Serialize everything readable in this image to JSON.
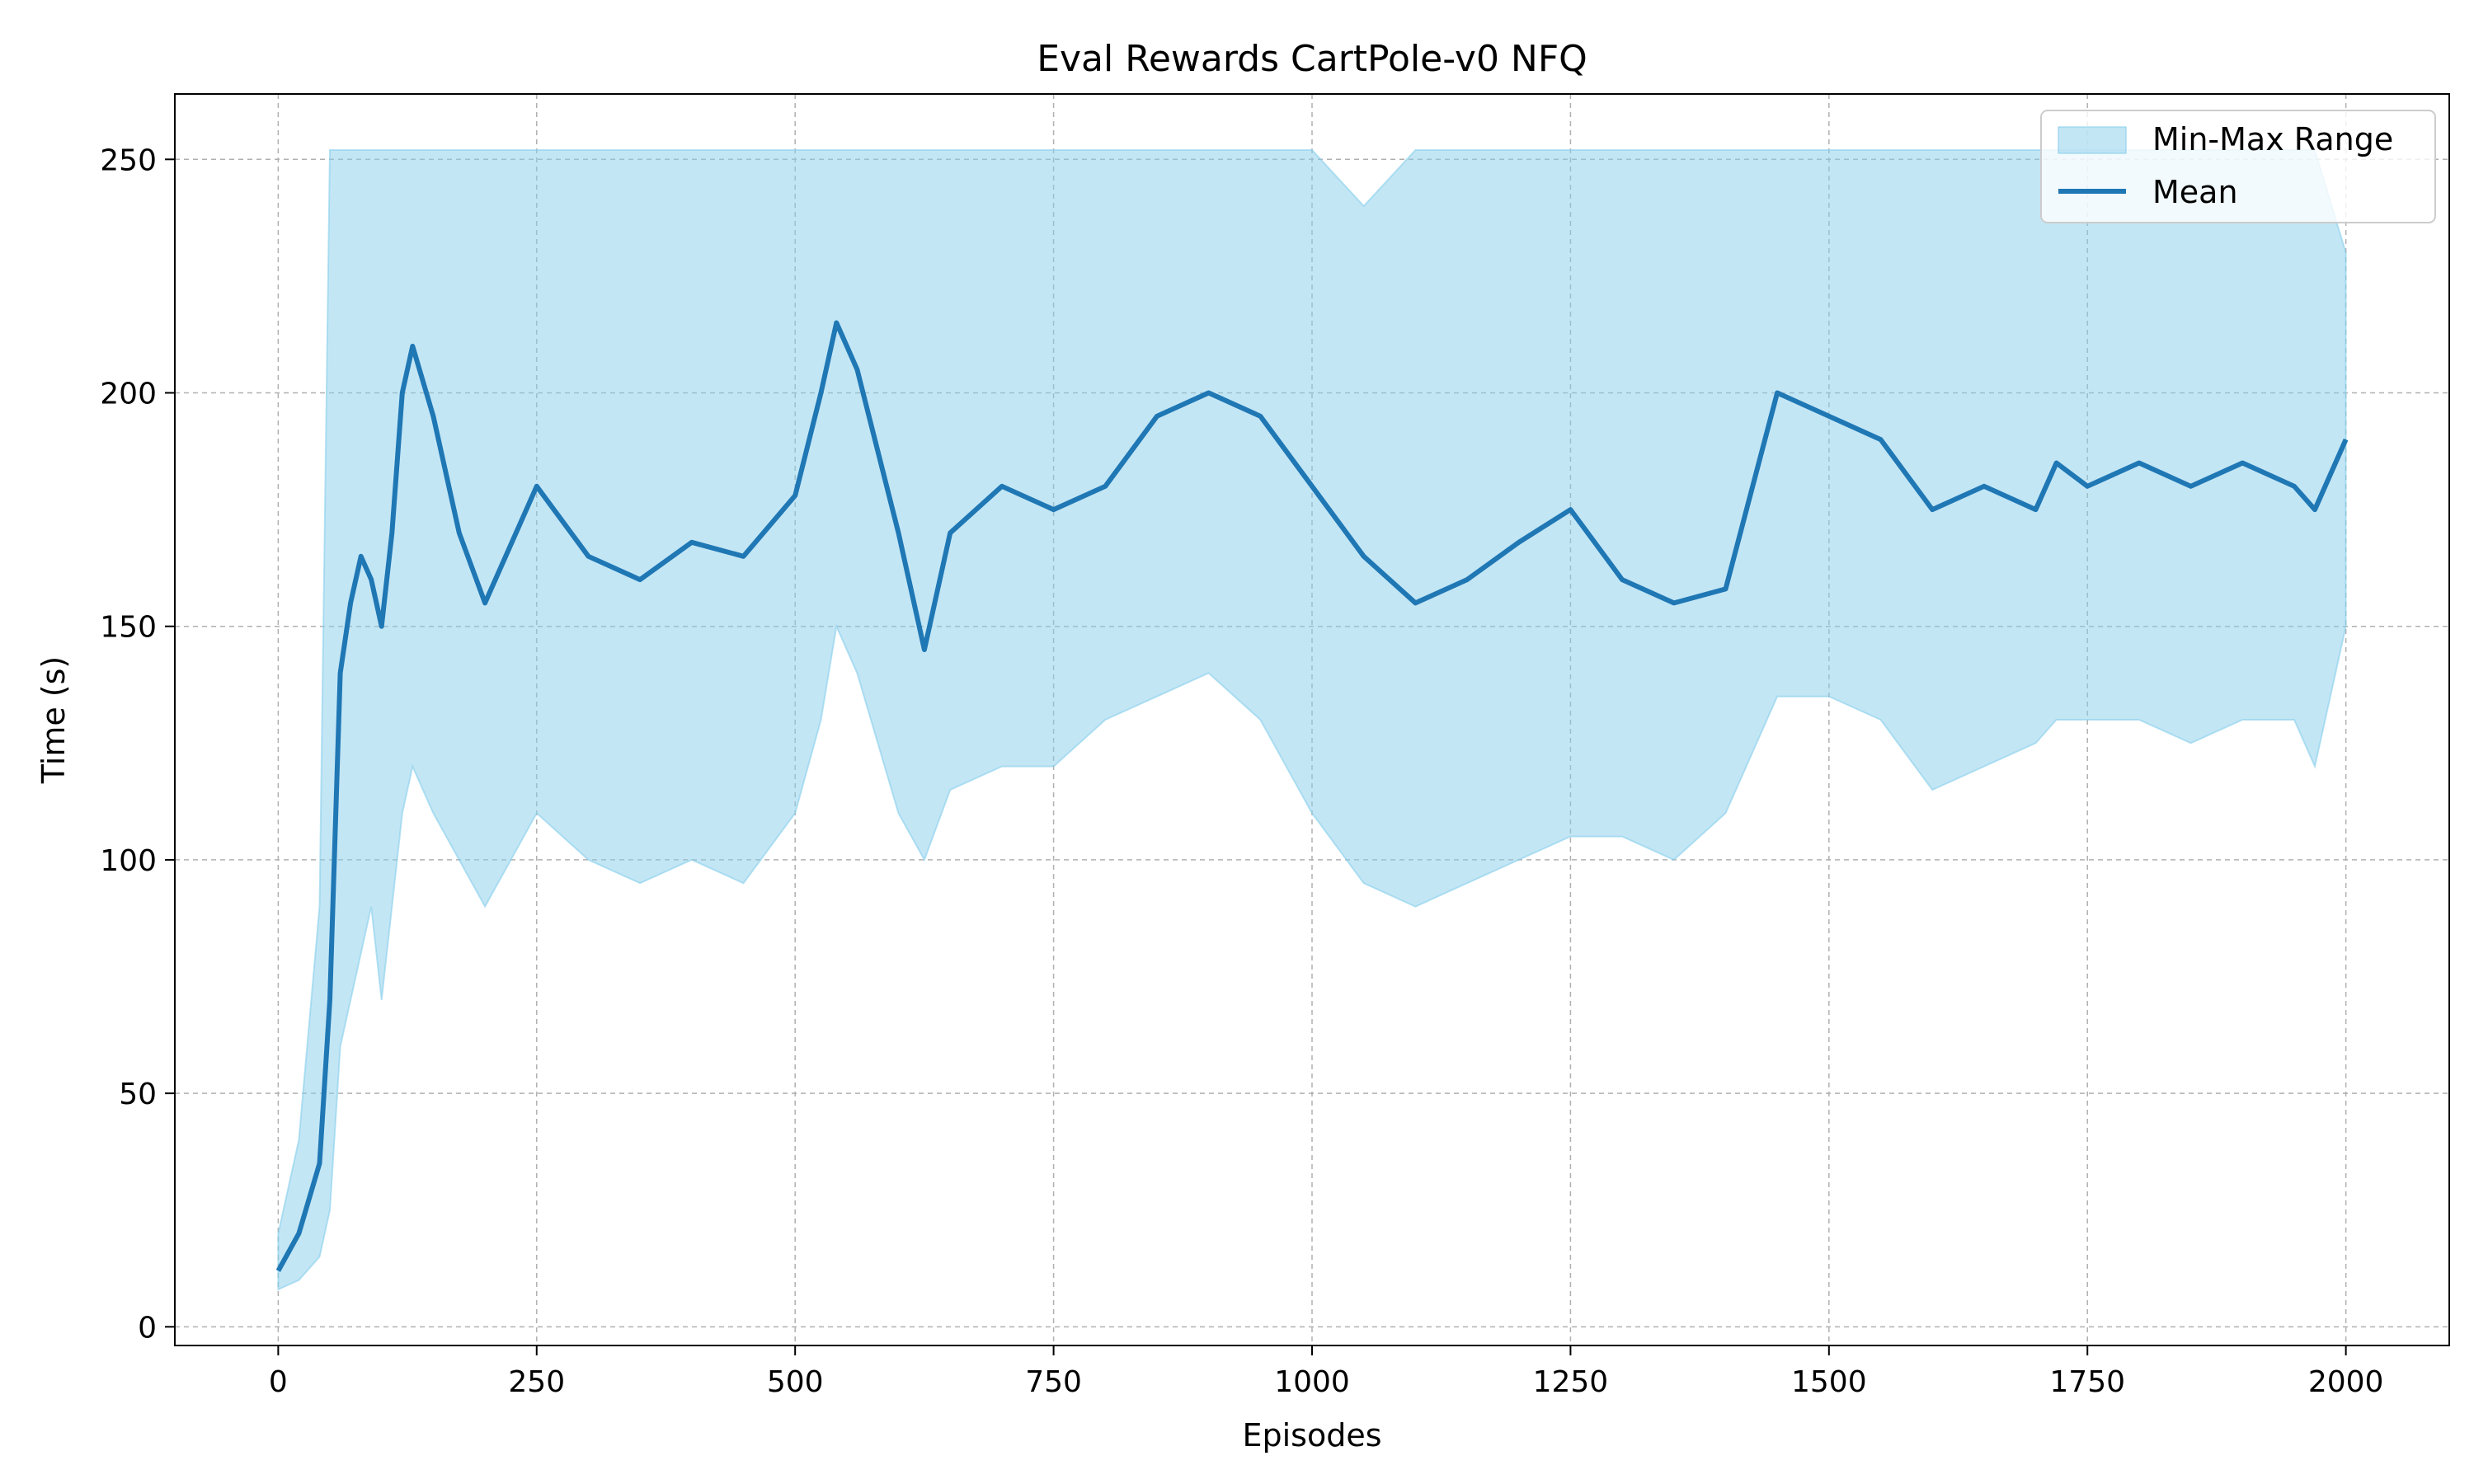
{
  "chart_data": {
    "type": "line",
    "title": "Eval Rewards CartPole-v0 NFQ",
    "xlabel": "Episodes",
    "ylabel": "Time (s)",
    "xlim": [
      -100,
      2100
    ],
    "ylim": [
      -4,
      264
    ],
    "x_ticks": [
      0,
      250,
      500,
      750,
      1000,
      1250,
      1500,
      1750,
      2000
    ],
    "y_ticks": [
      0,
      50,
      100,
      150,
      200,
      250
    ],
    "grid": true,
    "legend_position": "top-right",
    "legend": [
      {
        "label": "Min-Max Range",
        "kind": "band",
        "color": "#87ceeb"
      },
      {
        "label": "Mean",
        "kind": "line",
        "color": "#1f77b4"
      }
    ],
    "colors": {
      "mean": "#1f77b4",
      "band": "#87ceeb",
      "grid": "#b0b0b0"
    },
    "series": [
      {
        "name": "Mean",
        "x": [
          0,
          20,
          40,
          50,
          60,
          70,
          80,
          90,
          100,
          110,
          120,
          130,
          150,
          175,
          200,
          250,
          300,
          350,
          400,
          450,
          500,
          525,
          540,
          560,
          600,
          625,
          650,
          700,
          750,
          800,
          850,
          900,
          950,
          1000,
          1050,
          1100,
          1150,
          1200,
          1250,
          1300,
          1350,
          1400,
          1450,
          1500,
          1550,
          1600,
          1650,
          1700,
          1720,
          1750,
          1800,
          1850,
          1900,
          1950,
          1970,
          2000
        ],
        "y": [
          12,
          20,
          35,
          70,
          140,
          155,
          165,
          160,
          150,
          170,
          200,
          210,
          195,
          170,
          155,
          180,
          165,
          160,
          168,
          165,
          178,
          200,
          215,
          205,
          170,
          145,
          170,
          180,
          175,
          180,
          195,
          200,
          195,
          180,
          165,
          155,
          160,
          168,
          175,
          160,
          155,
          158,
          200,
          195,
          190,
          175,
          180,
          175,
          185,
          180,
          185,
          180,
          185,
          180,
          175,
          190
        ]
      },
      {
        "name": "Min-Max Range",
        "x": [
          0,
          20,
          40,
          50,
          60,
          70,
          80,
          90,
          100,
          110,
          120,
          130,
          150,
          175,
          200,
          250,
          300,
          350,
          400,
          450,
          500,
          525,
          540,
          560,
          600,
          625,
          650,
          700,
          750,
          800,
          850,
          900,
          950,
          1000,
          1050,
          1100,
          1150,
          1200,
          1250,
          1300,
          1350,
          1400,
          1450,
          1500,
          1550,
          1600,
          1650,
          1700,
          1720,
          1750,
          1800,
          1850,
          1900,
          1950,
          1970,
          2000
        ],
        "min": [
          8,
          10,
          15,
          25,
          60,
          70,
          80,
          90,
          70,
          90,
          110,
          120,
          110,
          100,
          90,
          110,
          100,
          95,
          100,
          95,
          110,
          130,
          150,
          140,
          110,
          100,
          115,
          120,
          120,
          130,
          135,
          140,
          130,
          110,
          95,
          90,
          95,
          100,
          105,
          105,
          100,
          110,
          135,
          135,
          130,
          115,
          120,
          125,
          130,
          130,
          130,
          125,
          130,
          130,
          120,
          150
        ],
        "max": [
          20,
          40,
          90,
          252,
          252,
          252,
          252,
          252,
          252,
          252,
          252,
          252,
          252,
          252,
          252,
          252,
          252,
          252,
          252,
          252,
          252,
          252,
          252,
          252,
          252,
          252,
          252,
          252,
          252,
          252,
          252,
          252,
          252,
          252,
          240,
          252,
          252,
          252,
          252,
          252,
          252,
          252,
          252,
          252,
          252,
          252,
          252,
          252,
          252,
          252,
          252,
          252,
          252,
          252,
          252,
          230
        ]
      }
    ]
  }
}
